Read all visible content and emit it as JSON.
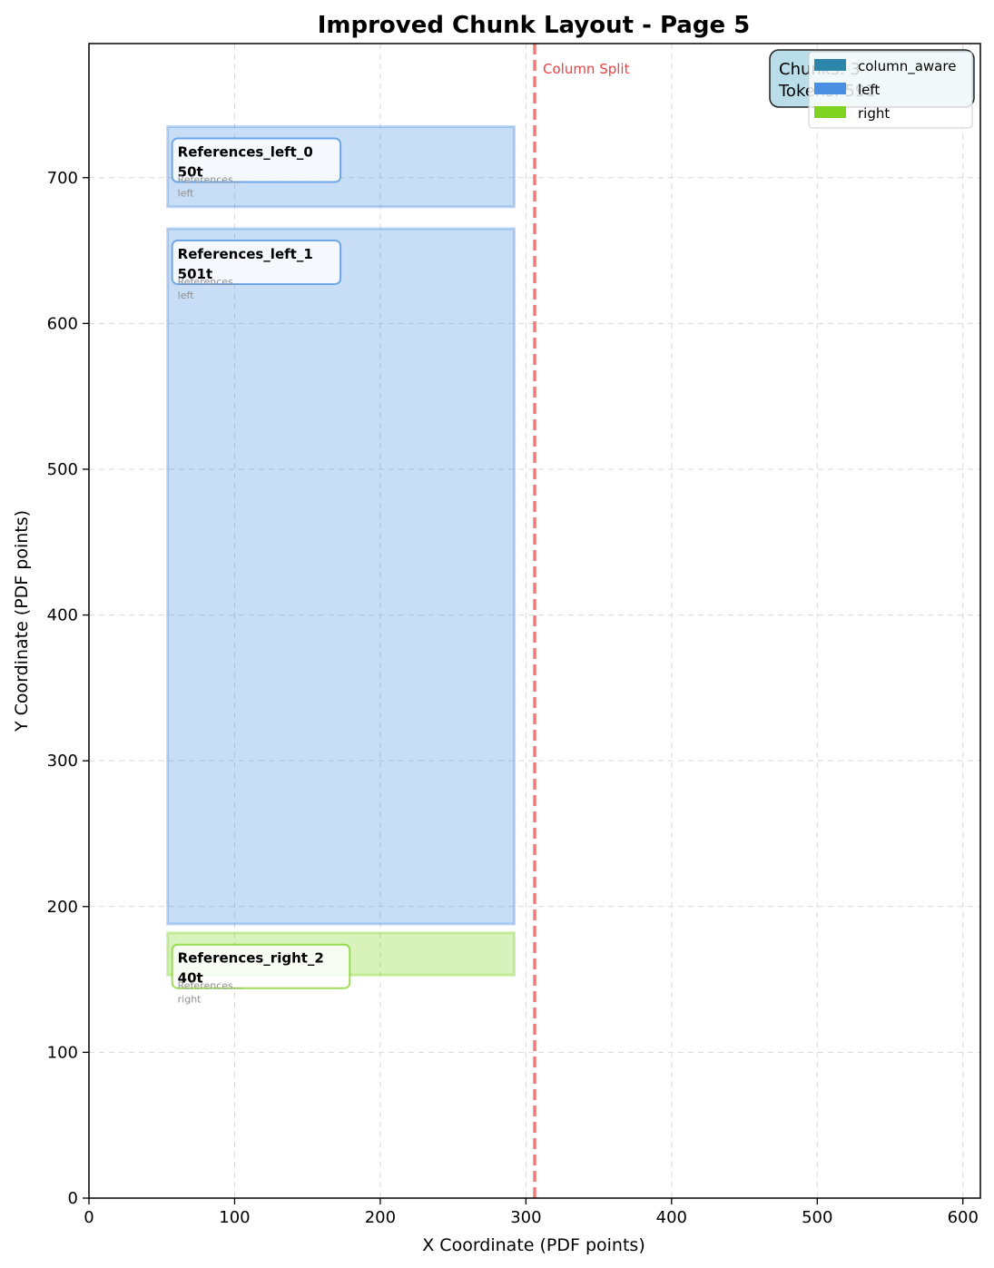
{
  "chart_data": {
    "type": "bar",
    "title": "Improved Chunk Layout - Page 5",
    "xlabel": "X Coordinate (PDF points)",
    "ylabel": "Y Coordinate (PDF points)",
    "xlim": [
      0,
      612
    ],
    "ylim": [
      0,
      792
    ],
    "xticks": [
      0,
      100,
      200,
      300,
      400,
      500,
      600
    ],
    "yticks": [
      0,
      100,
      200,
      300,
      400,
      500,
      600,
      700
    ],
    "grid": true,
    "column_split": {
      "x": 306,
      "label": "Column Split",
      "color": "#f04040"
    },
    "chunks": [
      {
        "name": "References_left_0",
        "tokens": "50t",
        "preview": "References...",
        "column": "left",
        "x0": 54,
        "x1": 292,
        "y0": 680,
        "y1": 735,
        "color": "#4a90e2"
      },
      {
        "name": "References_left_1",
        "tokens": "501t",
        "preview": "References...",
        "column": "left",
        "x0": 54,
        "x1": 292,
        "y0": 188,
        "y1": 665,
        "color": "#4a90e2"
      },
      {
        "name": "References_right_2",
        "tokens": "40t",
        "preview": "References...",
        "column": "right",
        "x0": 54,
        "x1": 292,
        "y0": 153,
        "y1": 182,
        "color": "#7ed321"
      }
    ],
    "info_box": {
      "lines": [
        "Chunks: 3",
        "Tokens: 591"
      ],
      "bg": "#add8e6"
    },
    "legend": {
      "position": "top-right",
      "entries": [
        {
          "label": "column_aware",
          "color": "#2e86ab"
        },
        {
          "label": "left",
          "color": "#4a90e2"
        },
        {
          "label": "right",
          "color": "#7ed321"
        }
      ]
    }
  }
}
